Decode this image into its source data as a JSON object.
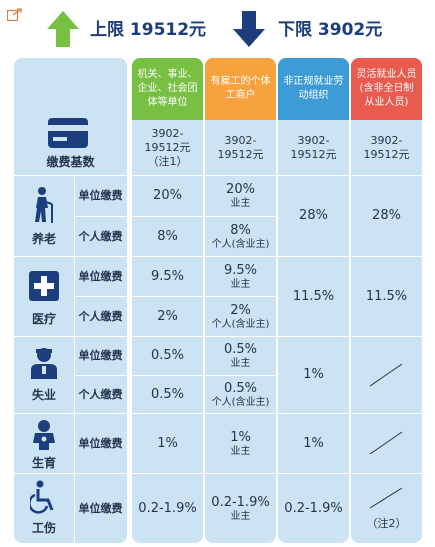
{
  "header": {
    "upper_limit": "上限 19512元",
    "lower_limit": "下限 3902元"
  },
  "columns": [
    {
      "title": "机关、事业、企业、社会团体等单位"
    },
    {
      "title": "有雇工的个体工商户"
    },
    {
      "title": "非正规就业劳动组织"
    },
    {
      "title": "灵活就业人员(含非全日制从业人员)"
    }
  ],
  "base": {
    "label": "缴费基数",
    "values": [
      [
        "3902-",
        "19512元",
        "（注1）"
      ],
      [
        "3902-",
        "19512元"
      ],
      [
        "3902-",
        "19512元"
      ],
      [
        "3902-",
        "19512元"
      ]
    ]
  },
  "labels": {
    "unit": "单位缴费",
    "personal": "个人缴费"
  },
  "categories": {
    "pension": "养老",
    "medical": "医疗",
    "unemployment": "失业",
    "maternity": "生育",
    "injury": "工伤"
  },
  "pension": {
    "unit_c1": "20%",
    "unit_c2": "20%",
    "unit_c2_sub": "业主",
    "personal_c1": "8%",
    "personal_c2": "8%",
    "personal_c2_sub": "个人(含业主)",
    "c3": "28%",
    "c4": "28%"
  },
  "medical": {
    "unit_c1": "9.5%",
    "unit_c2": "9.5%",
    "unit_c2_sub": "业主",
    "personal_c1": "2%",
    "personal_c2": "2%",
    "personal_c2_sub": "个人(含业主)",
    "c3": "11.5%",
    "c4": "11.5%"
  },
  "unemployment": {
    "unit_c1": "0.5%",
    "unit_c2": "0.5%",
    "unit_c2_sub": "业主",
    "personal_c1": "0.5%",
    "personal_c2": "0.5%",
    "personal_c2_sub": "个人(含业主)",
    "c3": "1%"
  },
  "maternity": {
    "unit_c1": "1%",
    "unit_c2": "1%",
    "unit_c2_sub": "业主",
    "c3": "1%"
  },
  "injury": {
    "unit_c1": "0.2-1.9%",
    "unit_c2": "0.2-1.9%",
    "unit_c2_sub": "业主",
    "c3": "0.2-1.9%",
    "c4_note": "（注2）"
  },
  "icons": {
    "upper": "green-up-arrow",
    "lower": "navy-down-arrow",
    "base": "card-icon",
    "pension": "elderly-icon",
    "medical": "medical-cross-icon",
    "unemployment": "worker-icon",
    "maternity": "baby-icon",
    "injury": "wheelchair-icon"
  },
  "colors": {
    "col1": "#77c043",
    "col2": "#f7a23e",
    "col3": "#3d9bd6",
    "col4": "#ea5b4f",
    "panel": "#cbe3f3",
    "icon": "#1c3e7c"
  }
}
